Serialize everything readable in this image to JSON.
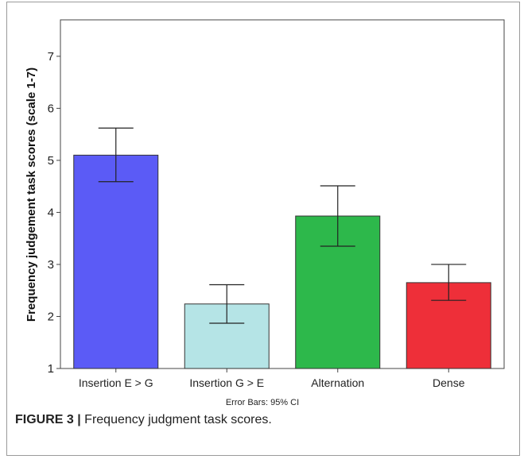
{
  "caption": {
    "label": "FIGURE 3 |",
    "text": "Frequency judgment task scores."
  },
  "chart_data": {
    "type": "bar",
    "categories": [
      "Insertion E > G",
      "Insertion G > E",
      "Alternation",
      "Dense"
    ],
    "values": [
      5.1,
      2.24,
      3.93,
      2.65
    ],
    "error_bars": {
      "lower": [
        4.59,
        1.87,
        3.35,
        2.31
      ],
      "upper": [
        5.62,
        2.61,
        4.51,
        3.0
      ]
    },
    "colors": [
      "#5B5BF6",
      "#B5E4E6",
      "#2DB84B",
      "#EE2F39"
    ],
    "ylabel": "Frequency judgement task scores (scale 1-7)",
    "xlabel": "",
    "ylim": [
      1,
      7.7
    ],
    "yticks": [
      1,
      2,
      3,
      4,
      5,
      6,
      7
    ],
    "grid": false,
    "note": "Error Bars: 95% CI"
  }
}
